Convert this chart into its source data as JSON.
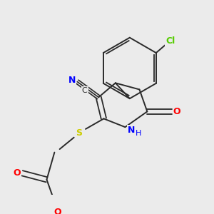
{
  "bg_color": "#ebebeb",
  "bond_color": "#2a2a2a",
  "atom_colors": {
    "N": "#0000ff",
    "O": "#ff0000",
    "S": "#cccc00",
    "Cl": "#55cc00"
  },
  "figsize": [
    3.0,
    3.0
  ],
  "dpi": 100
}
